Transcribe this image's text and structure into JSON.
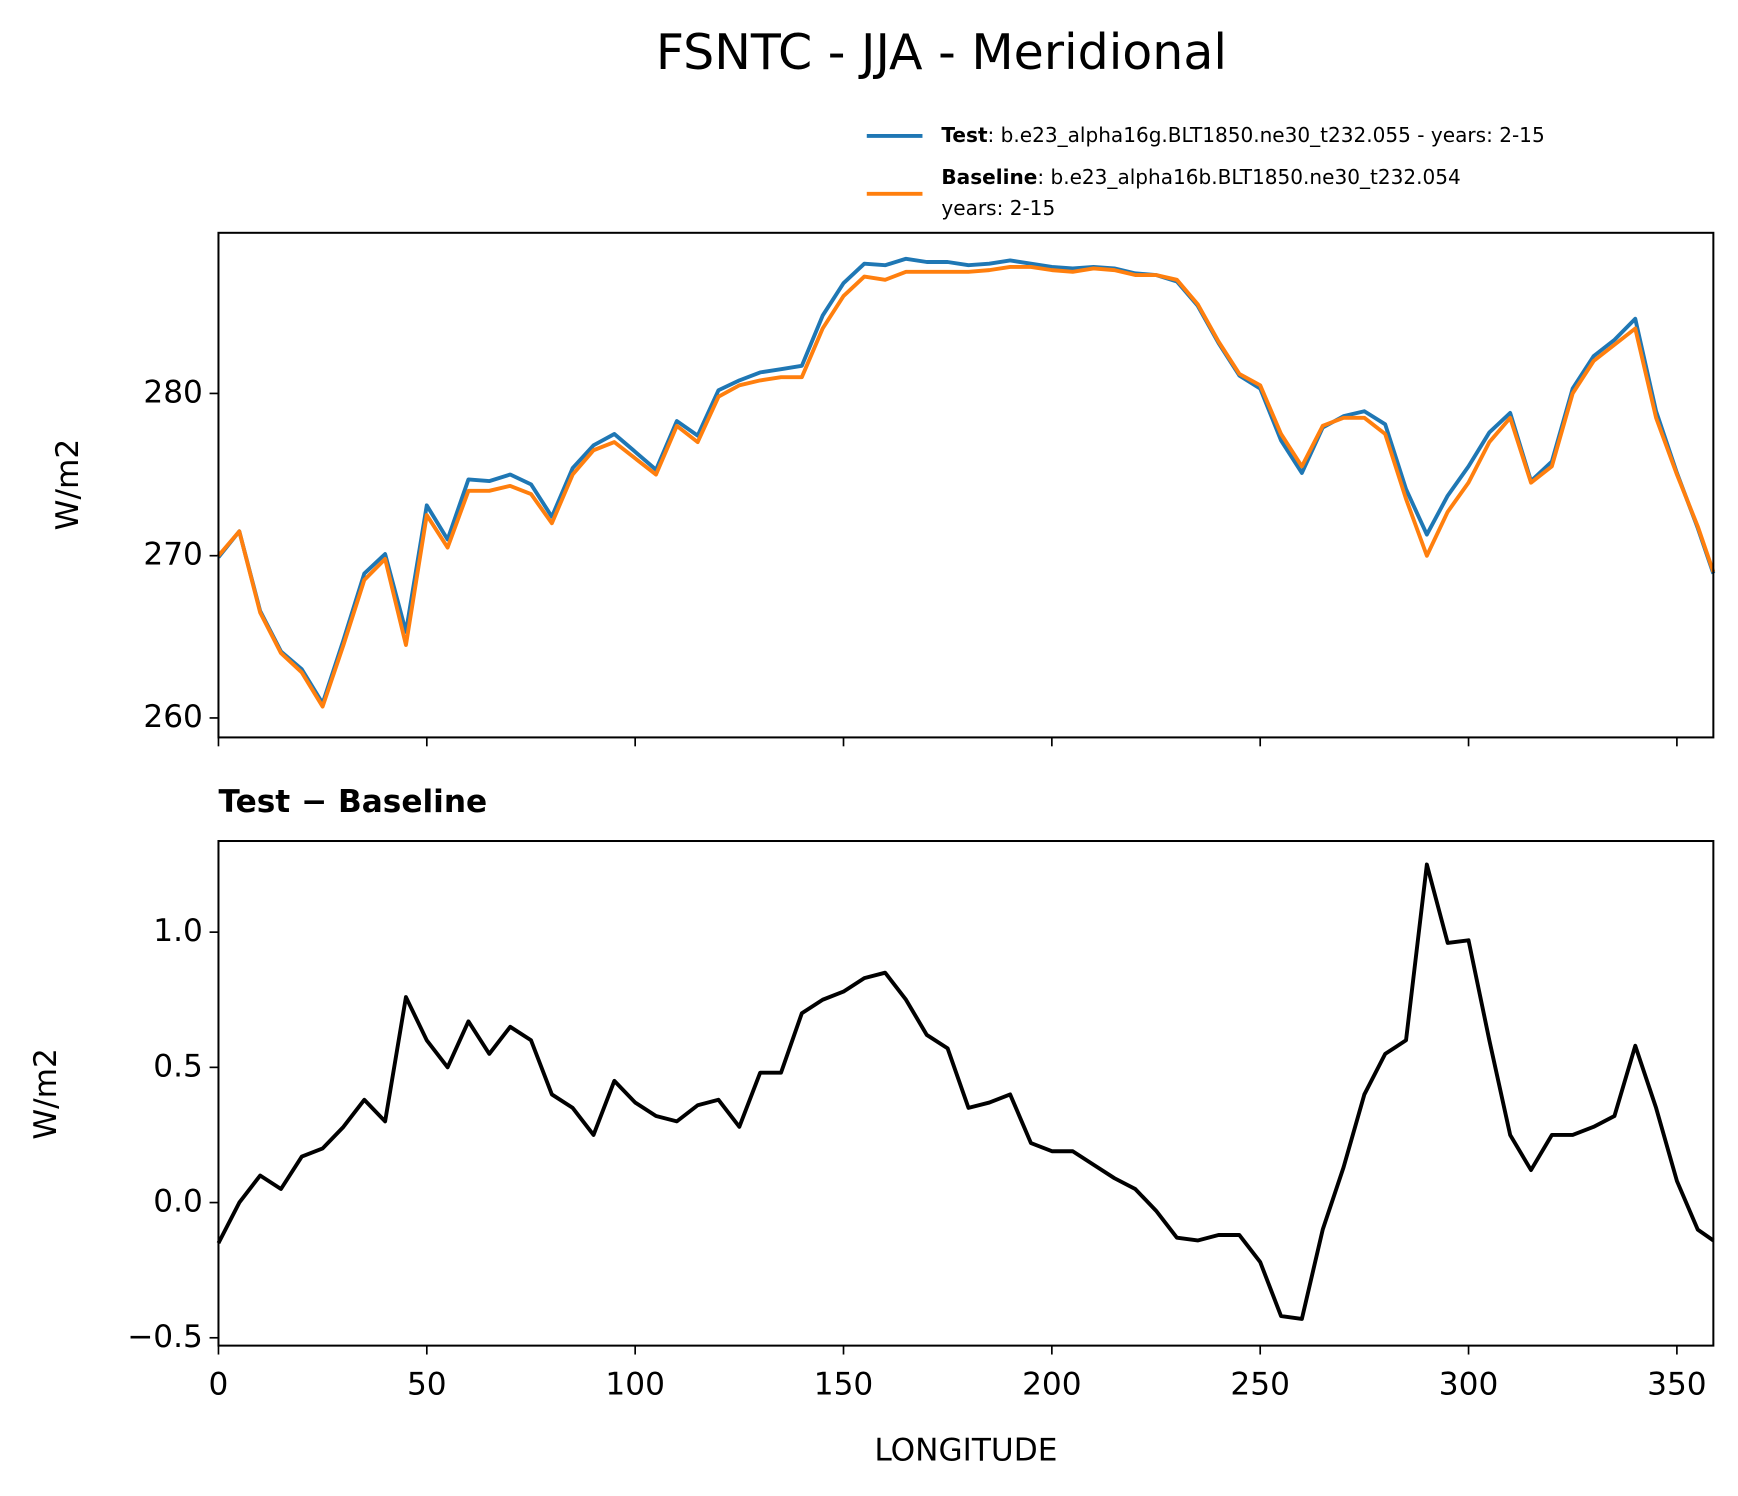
{
  "title": "FSNTC - JJA - Meridional",
  "chart_data": [
    {
      "type": "line",
      "ylabel": "W/m2",
      "x": [
        0,
        5,
        10,
        15,
        20,
        25,
        30,
        35,
        40,
        45,
        50,
        55,
        60,
        65,
        70,
        75,
        80,
        85,
        90,
        95,
        100,
        105,
        110,
        115,
        120,
        125,
        130,
        135,
        140,
        145,
        150,
        155,
        160,
        165,
        170,
        175,
        180,
        185,
        190,
        195,
        200,
        205,
        210,
        215,
        220,
        225,
        230,
        235,
        240,
        245,
        250,
        255,
        260,
        265,
        270,
        275,
        280,
        285,
        290,
        295,
        300,
        305,
        310,
        315,
        320,
        325,
        330,
        335,
        340,
        345,
        350,
        355,
        358.75
      ],
      "series": [
        {
          "name": "Test",
          "description": [
            ": b.e23_alpha16g.BLT1850.ne30_t232.055 - years: 2-15"
          ],
          "color": "#1f77b4",
          "values": [
            269.9,
            271.5,
            266.6,
            264.1,
            263.0,
            260.9,
            264.8,
            268.9,
            270.1,
            265.3,
            273.1,
            271.0,
            274.7,
            274.6,
            275.0,
            274.4,
            272.4,
            275.4,
            276.8,
            277.5,
            276.4,
            275.3,
            278.3,
            277.4,
            280.2,
            280.8,
            281.3,
            281.5,
            281.7,
            284.8,
            286.8,
            288.0,
            287.9,
            288.3,
            288.1,
            288.1,
            287.9,
            288.0,
            288.2,
            288.0,
            287.8,
            287.7,
            287.8,
            287.7,
            287.4,
            287.3,
            286.9,
            285.4,
            283.1,
            281.1,
            280.3,
            277.1,
            275.1,
            277.9,
            278.6,
            278.9,
            278.1,
            274.1,
            271.3,
            273.7,
            275.5,
            277.6,
            278.8,
            274.6,
            275.8,
            280.3,
            282.3,
            283.3,
            284.6,
            278.9,
            275.1,
            271.7,
            268.9
          ]
        },
        {
          "name": "Baseline",
          "description": [
            ": b.e23_alpha16b.BLT1850.ne30_t232.054",
            "years: 2-15"
          ],
          "color": "#ff7f0e",
          "values": [
            270.0,
            271.5,
            266.5,
            264.0,
            262.8,
            260.7,
            264.5,
            268.5,
            269.8,
            264.5,
            272.5,
            270.5,
            274.0,
            274.0,
            274.3,
            273.8,
            272.0,
            275.0,
            276.5,
            277.0,
            276.0,
            275.0,
            278.0,
            277.0,
            279.8,
            280.5,
            280.8,
            281.0,
            281.0,
            284.0,
            286.0,
            287.2,
            287.0,
            287.5,
            287.5,
            287.5,
            287.5,
            287.6,
            287.8,
            287.8,
            287.6,
            287.5,
            287.7,
            287.6,
            287.3,
            287.3,
            287.0,
            285.5,
            283.2,
            281.2,
            280.5,
            277.5,
            275.5,
            278.0,
            278.5,
            278.5,
            277.5,
            273.5,
            270.0,
            272.7,
            274.5,
            277.0,
            278.5,
            274.5,
            275.5,
            280.0,
            282.0,
            283.0,
            284.0,
            278.5,
            275.0,
            271.8,
            269.0
          ]
        }
      ],
      "xlim": [
        0,
        358.75
      ],
      "xticks": [
        0,
        50,
        100,
        150,
        200,
        250,
        300,
        350
      ],
      "ylim": [
        258.8,
        289.9
      ],
      "yticks": [
        260,
        270,
        280
      ]
    },
    {
      "type": "line",
      "title": "Test − Baseline",
      "xlabel": "LONGITUDE",
      "ylabel": "W/m2",
      "x": [
        0,
        5,
        10,
        15,
        20,
        25,
        30,
        35,
        40,
        45,
        50,
        55,
        60,
        65,
        70,
        75,
        80,
        85,
        90,
        95,
        100,
        105,
        110,
        115,
        120,
        125,
        130,
        135,
        140,
        145,
        150,
        155,
        160,
        165,
        170,
        175,
        180,
        185,
        190,
        195,
        200,
        205,
        210,
        215,
        220,
        225,
        230,
        235,
        240,
        245,
        250,
        255,
        260,
        265,
        270,
        275,
        280,
        285,
        290,
        295,
        300,
        305,
        310,
        315,
        320,
        325,
        330,
        335,
        340,
        345,
        350,
        355,
        358.75
      ],
      "values": [
        -0.15,
        0.0,
        0.1,
        0.05,
        0.17,
        0.2,
        0.28,
        0.38,
        0.3,
        0.76,
        0.6,
        0.5,
        0.67,
        0.55,
        0.65,
        0.6,
        0.4,
        0.35,
        0.25,
        0.45,
        0.37,
        0.32,
        0.3,
        0.36,
        0.38,
        0.28,
        0.48,
        0.48,
        0.7,
        0.75,
        0.78,
        0.83,
        0.85,
        0.75,
        0.62,
        0.57,
        0.35,
        0.37,
        0.4,
        0.22,
        0.19,
        0.19,
        0.14,
        0.09,
        0.05,
        -0.03,
        -0.13,
        -0.14,
        -0.12,
        -0.12,
        -0.22,
        -0.42,
        -0.43,
        -0.1,
        0.13,
        0.4,
        0.55,
        0.6,
        1.25,
        0.96,
        0.97,
        0.6,
        0.25,
        0.12,
        0.25,
        0.25,
        0.28,
        0.32,
        0.58,
        0.35,
        0.08,
        -0.1,
        -0.14
      ],
      "color": "#000000",
      "xlim": [
        0,
        358.75
      ],
      "xticks": [
        0,
        50,
        100,
        150,
        200,
        250,
        300,
        350
      ],
      "ylim": [
        -0.529,
        1.337
      ],
      "yticks": [
        {
          "value": -0.5,
          "label": "−0.5"
        },
        {
          "value": 0,
          "label": "0.0"
        },
        0.5,
        {
          "value": 1,
          "label": "1.0"
        }
      ]
    }
  ]
}
